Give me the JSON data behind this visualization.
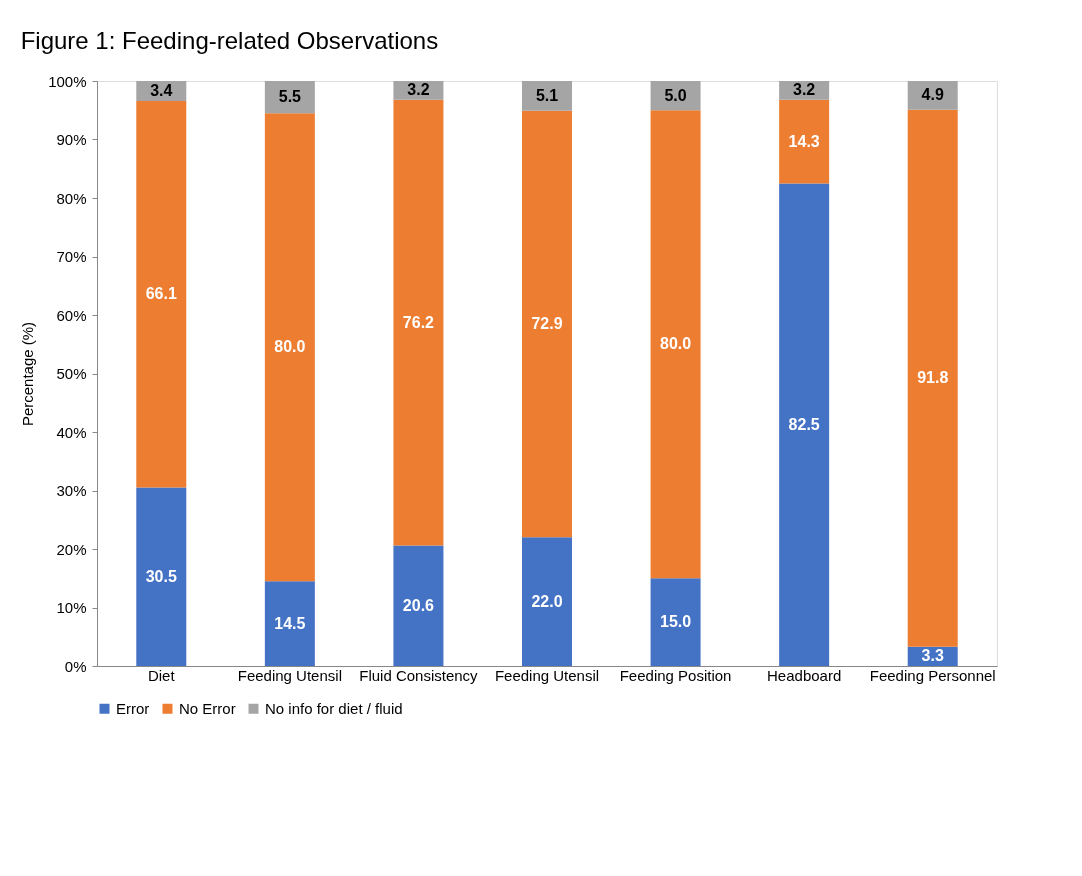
{
  "chart_data": {
    "type": "bar",
    "title": "Figure 1: Feeding-related Observations",
    "ylabel": "Percentage (%)",
    "stacked": true,
    "categories": [
      "Diet",
      "Feeding Utensil",
      "Fluid Consistency",
      "Feeding Utensil",
      "Feeding Position",
      "Headboard",
      "Feeding Personnel"
    ],
    "series": [
      {
        "name": "Error",
        "color": "#4472c4",
        "values": [
          30.5,
          14.5,
          20.6,
          22.0,
          15.0,
          82.5,
          3.3
        ],
        "value_labels": [
          "30.5",
          "14.5",
          "20.6",
          "22.0",
          "15.0",
          "82.5",
          "3.3"
        ]
      },
      {
        "name": "No Error",
        "color": "#ed7d31",
        "values": [
          66.1,
          80.0,
          76.2,
          72.9,
          80.0,
          14.3,
          91.8
        ],
        "value_labels": [
          "66.1",
          "80.0",
          "76.2",
          "72.9",
          "80.0",
          "14.3",
          "91.8"
        ]
      },
      {
        "name": "No info for diet / fluid",
        "color": "#a5a5a5",
        "values": [
          3.4,
          5.5,
          3.2,
          5.1,
          5.0,
          3.2,
          4.9
        ],
        "value_labels": [
          "3.4",
          "5.5",
          "3.2",
          "5.1",
          "5.0",
          "3.2",
          "4.9"
        ]
      }
    ],
    "ylim": [
      0,
      100
    ],
    "yticks": [
      {
        "value": 0,
        "label": "0%"
      },
      {
        "value": 10,
        "label": "10%"
      },
      {
        "value": 20,
        "label": "20%"
      },
      {
        "value": 30,
        "label": "30%"
      },
      {
        "value": 40,
        "label": "40%"
      },
      {
        "value": 50,
        "label": "50%"
      },
      {
        "value": 60,
        "label": "60%"
      },
      {
        "value": 70,
        "label": "70%"
      },
      {
        "value": 80,
        "label": "80%"
      },
      {
        "value": 90,
        "label": "90%"
      },
      {
        "value": 100,
        "label": "100%"
      }
    ],
    "grid": false,
    "legend": "bottom"
  }
}
